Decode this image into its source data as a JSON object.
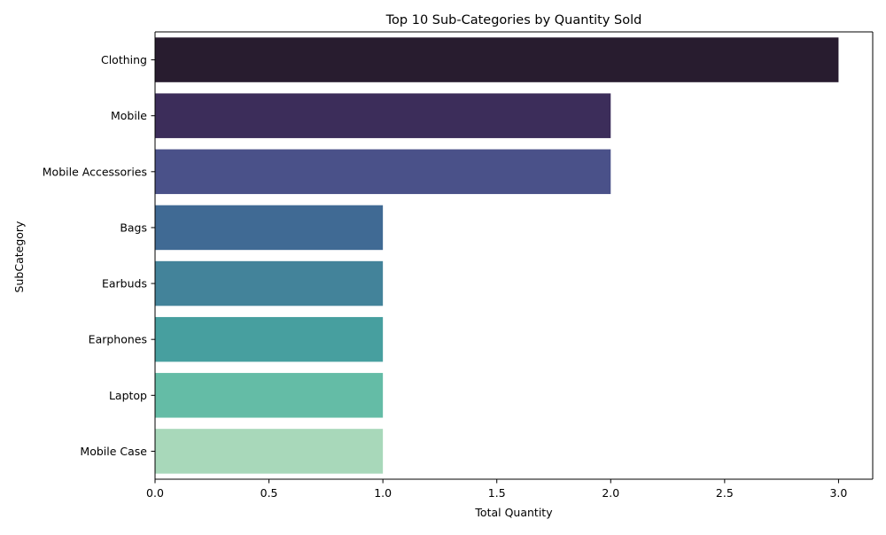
{
  "chart_data": {
    "type": "bar",
    "orientation": "horizontal",
    "title": "Top 10 Sub-Categories by Quantity Sold",
    "xlabel": "Total Quantity",
    "ylabel": "SubCategory",
    "categories": [
      "Clothing",
      "Mobile",
      "Mobile Accessories",
      "Bags",
      "Earbuds",
      "Earphones",
      "Laptop",
      "Mobile Case"
    ],
    "values": [
      3,
      2,
      2,
      1,
      1,
      1,
      1,
      1
    ],
    "colors": [
      "#281c2f",
      "#3c2d5a",
      "#4a5189",
      "#406a94",
      "#43839a",
      "#479f9f",
      "#64bca6",
      "#a8d8ba"
    ],
    "xlim": [
      0,
      3.15
    ],
    "xticks": [
      0,
      0.5,
      1,
      1.5,
      2,
      2.5,
      3
    ],
    "xtick_labels": [
      "0.0",
      "0.5",
      "1.0",
      "1.5",
      "2.0",
      "2.5",
      "3.0"
    ],
    "grid": false,
    "legend": "none"
  }
}
